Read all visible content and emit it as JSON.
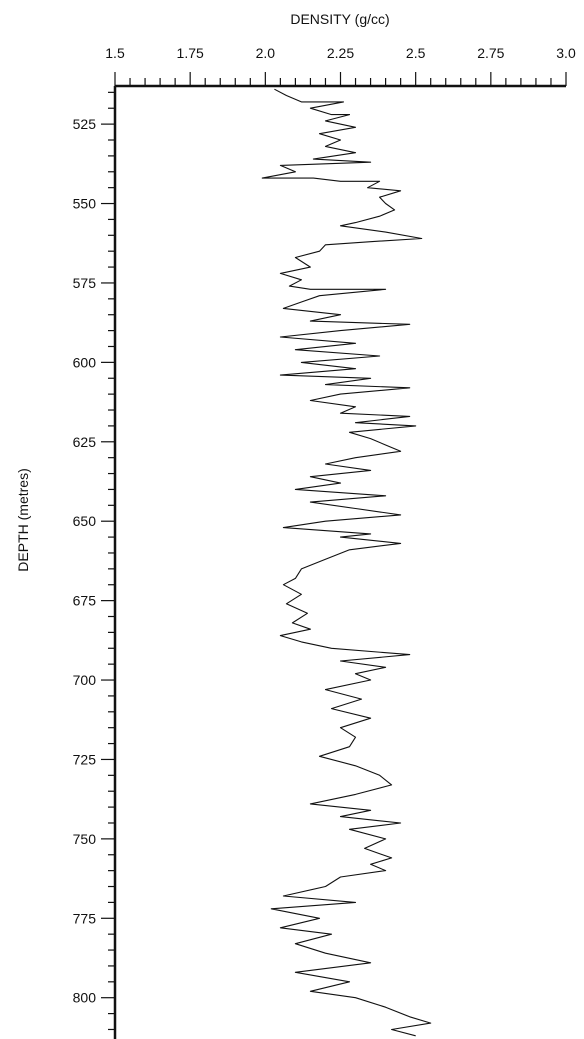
{
  "chart_data": {
    "type": "line",
    "title": "",
    "xlabel": "DENSITY (g/cc)",
    "ylabel": "DEPTH (metres)",
    "xlim": [
      1.5,
      3.0
    ],
    "ylim": [
      513,
      813
    ],
    "y_inverted": true,
    "x_axis_position": "top",
    "x_ticks": [
      "1.5",
      "1.75",
      "2.0",
      "2.25",
      "2.5",
      "2.75",
      "3.0"
    ],
    "y_ticks": [
      "525",
      "550",
      "575",
      "600",
      "625",
      "650",
      "675",
      "700",
      "725",
      "750",
      "775",
      "800"
    ],
    "grid": false,
    "series": [
      {
        "name": "",
        "color": "#111111",
        "points": [
          [
            2.03,
            514
          ],
          [
            2.07,
            516
          ],
          [
            2.12,
            518
          ],
          [
            2.26,
            518
          ],
          [
            2.15,
            520
          ],
          [
            2.22,
            522
          ],
          [
            2.28,
            522
          ],
          [
            2.2,
            524
          ],
          [
            2.3,
            526
          ],
          [
            2.18,
            528
          ],
          [
            2.25,
            530
          ],
          [
            2.2,
            532
          ],
          [
            2.3,
            534
          ],
          [
            2.16,
            536
          ],
          [
            2.35,
            537
          ],
          [
            2.05,
            538
          ],
          [
            2.1,
            540
          ],
          [
            1.99,
            542
          ],
          [
            2.16,
            542
          ],
          [
            2.25,
            543
          ],
          [
            2.38,
            543
          ],
          [
            2.34,
            545
          ],
          [
            2.45,
            546
          ],
          [
            2.38,
            548
          ],
          [
            2.4,
            550
          ],
          [
            2.43,
            552
          ],
          [
            2.38,
            554
          ],
          [
            2.3,
            556
          ],
          [
            2.25,
            557
          ],
          [
            2.4,
            559
          ],
          [
            2.52,
            561
          ],
          [
            2.35,
            562
          ],
          [
            2.2,
            563
          ],
          [
            2.18,
            565
          ],
          [
            2.1,
            567
          ],
          [
            2.15,
            570
          ],
          [
            2.05,
            572
          ],
          [
            2.12,
            574
          ],
          [
            2.08,
            576
          ],
          [
            2.15,
            577
          ],
          [
            2.4,
            577
          ],
          [
            2.18,
            579
          ],
          [
            2.12,
            581
          ],
          [
            2.06,
            583
          ],
          [
            2.25,
            585
          ],
          [
            2.15,
            587
          ],
          [
            2.48,
            588
          ],
          [
            2.25,
            590
          ],
          [
            2.05,
            592
          ],
          [
            2.3,
            594
          ],
          [
            2.1,
            596
          ],
          [
            2.38,
            598
          ],
          [
            2.12,
            600
          ],
          [
            2.3,
            602
          ],
          [
            2.05,
            604
          ],
          [
            2.35,
            605
          ],
          [
            2.2,
            607
          ],
          [
            2.48,
            608
          ],
          [
            2.25,
            610
          ],
          [
            2.15,
            612
          ],
          [
            2.3,
            614
          ],
          [
            2.25,
            616
          ],
          [
            2.48,
            617
          ],
          [
            2.3,
            619
          ],
          [
            2.5,
            620
          ],
          [
            2.28,
            622
          ],
          [
            2.35,
            624
          ],
          [
            2.4,
            626
          ],
          [
            2.45,
            628
          ],
          [
            2.3,
            630
          ],
          [
            2.2,
            632
          ],
          [
            2.35,
            634
          ],
          [
            2.15,
            636
          ],
          [
            2.25,
            638
          ],
          [
            2.1,
            640
          ],
          [
            2.4,
            642
          ],
          [
            2.15,
            644
          ],
          [
            2.3,
            646
          ],
          [
            2.45,
            648
          ],
          [
            2.2,
            650
          ],
          [
            2.06,
            652
          ],
          [
            2.35,
            654
          ],
          [
            2.25,
            655
          ],
          [
            2.45,
            657
          ],
          [
            2.28,
            659
          ],
          [
            2.2,
            662
          ],
          [
            2.12,
            665
          ],
          [
            2.1,
            668
          ],
          [
            2.06,
            670
          ],
          [
            2.12,
            673
          ],
          [
            2.07,
            676
          ],
          [
            2.14,
            679
          ],
          [
            2.09,
            682
          ],
          [
            2.15,
            684
          ],
          [
            2.05,
            686
          ],
          [
            2.12,
            688
          ],
          [
            2.22,
            690
          ],
          [
            2.48,
            692
          ],
          [
            2.25,
            694
          ],
          [
            2.4,
            696
          ],
          [
            2.3,
            698
          ],
          [
            2.35,
            700
          ],
          [
            2.2,
            703
          ],
          [
            2.32,
            706
          ],
          [
            2.22,
            709
          ],
          [
            2.35,
            712
          ],
          [
            2.25,
            715
          ],
          [
            2.3,
            718
          ],
          [
            2.28,
            721
          ],
          [
            2.18,
            724
          ],
          [
            2.3,
            727
          ],
          [
            2.38,
            730
          ],
          [
            2.42,
            733
          ],
          [
            2.3,
            736
          ],
          [
            2.15,
            739
          ],
          [
            2.35,
            741
          ],
          [
            2.25,
            743
          ],
          [
            2.45,
            745
          ],
          [
            2.28,
            747
          ],
          [
            2.4,
            750
          ],
          [
            2.33,
            753
          ],
          [
            2.42,
            756
          ],
          [
            2.35,
            758
          ],
          [
            2.4,
            760
          ],
          [
            2.25,
            762
          ],
          [
            2.2,
            765
          ],
          [
            2.06,
            768
          ],
          [
            2.3,
            770
          ],
          [
            2.02,
            772
          ],
          [
            2.18,
            775
          ],
          [
            2.05,
            778
          ],
          [
            2.22,
            780
          ],
          [
            2.1,
            783
          ],
          [
            2.2,
            786
          ],
          [
            2.35,
            789
          ],
          [
            2.1,
            792
          ],
          [
            2.28,
            795
          ],
          [
            2.15,
            798
          ],
          [
            2.3,
            800
          ],
          [
            2.4,
            803
          ],
          [
            2.48,
            806
          ],
          [
            2.55,
            808
          ],
          [
            2.42,
            810
          ],
          [
            2.5,
            812
          ]
        ]
      }
    ]
  }
}
